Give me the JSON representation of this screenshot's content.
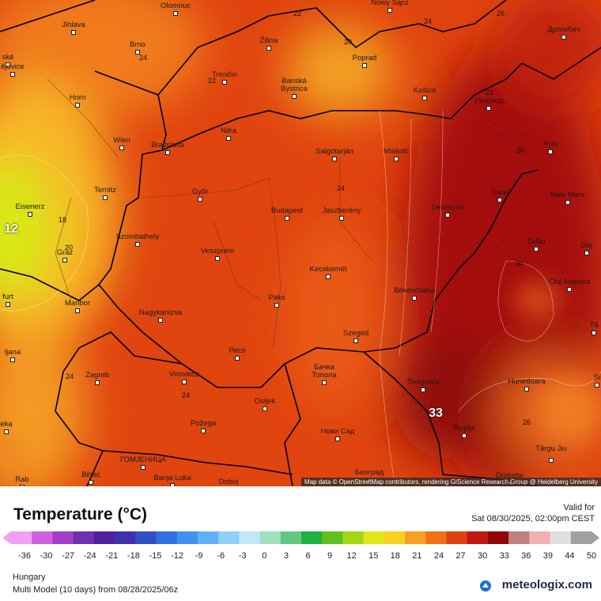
{
  "map": {
    "cities": [
      "Olomouc",
      "Nowy Sącz",
      "Jihlava",
      "Brno",
      "Žilina",
      "Poprad",
      "Дрогобич",
      "ské",
      "ějovice",
      "Horn",
      "Trenčín",
      "Banská Bystrica",
      "Košice",
      "Ужгород",
      "Wien",
      "Bratislava",
      "Nitra",
      "Salgótarján",
      "Miskolc",
      "Хуст",
      "Ternitz",
      "Győr",
      "Budapest",
      "Jászberény",
      "Debrecen",
      "Carei",
      "Baia Mare",
      "Eisenerz",
      "Szombathely",
      "Graz",
      "Veszprém",
      "Zalău",
      "Dej",
      "Kecskemét",
      "Cluj-Napoca",
      "Békéscsaba",
      "furt",
      "Paks",
      "Maribor",
      "Nagykanizsa",
      "Szeged",
      "Tâ",
      "ljana",
      "Pécs",
      "Бачка Топола",
      "Zagreb",
      "Virovitica",
      "Timișoara",
      "Hunedoara",
      "Si",
      "Osijek",
      "eka",
      "Požega",
      "Reșița",
      "Нови Сад",
      "Târgu Jiu",
      "ГОМЈЕНИЦА",
      "Bihać",
      "Banja Luka",
      "Doboj",
      "Београд",
      "Drobeta-",
      "Rab"
    ],
    "contour_labels": [
      "22",
      "24",
      "26",
      "24",
      "22",
      "20",
      "22",
      "20",
      "24",
      "18",
      "20",
      "12",
      "30",
      "24",
      "24",
      "33",
      "26"
    ],
    "attribution": "Map data © OpenStreetMap contributors, rendering GIScience Research Group @ Heidelberg University"
  },
  "legend": {
    "title": "Temperature (°C)",
    "valid_label": "Valid for",
    "valid_time": "Sat 08/30/2025, 02:00pm CEST",
    "ticks": [
      -36,
      -30,
      -27,
      -24,
      -21,
      -18,
      -15,
      -12,
      -9,
      -6,
      -3,
      0,
      3,
      6,
      9,
      12,
      15,
      18,
      21,
      24,
      27,
      30,
      33,
      36,
      39,
      44,
      50
    ]
  },
  "footer": {
    "region": "Hungary",
    "model": "Multi Model (10 days) from  08/28/2025/06z",
    "brand": "meteologix.com"
  }
}
